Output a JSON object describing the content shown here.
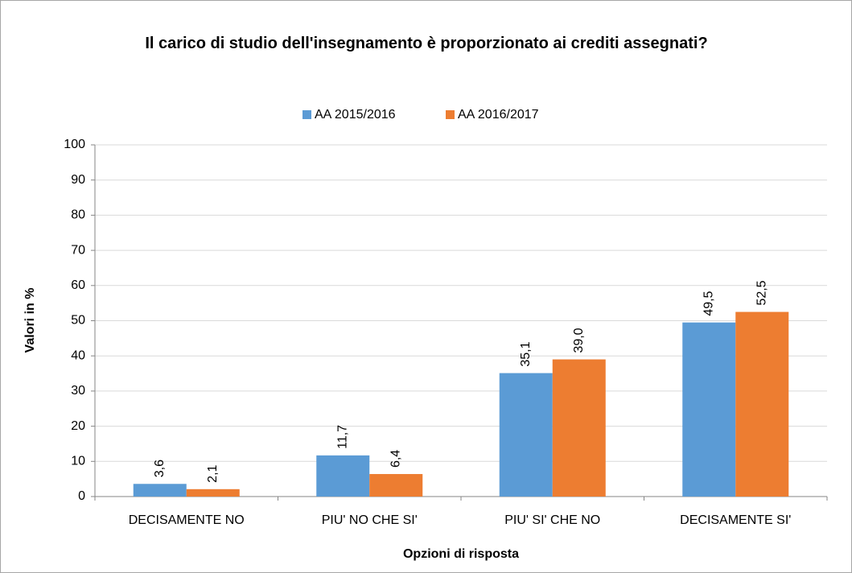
{
  "chart_data": {
    "type": "bar",
    "title": "Il carico di studio dell'insegnamento è proporzionato ai crediti assegnati?",
    "x_label": "Opzioni di risposta",
    "y_label": "Valori in %",
    "categories": [
      "DECISAMENTE NO",
      "PIU' NO CHE SI'",
      "PIU' SI' CHE NO",
      "DECISAMENTE SI'"
    ],
    "series": [
      {
        "name": "AA 2015/2016",
        "color": "#5b9bd5",
        "values": [
          3.6,
          11.7,
          35.1,
          49.5
        ],
        "value_labels": [
          "3,6",
          "11,7",
          "35,1",
          "49,5"
        ]
      },
      {
        "name": "AA 2016/2017",
        "color": "#ed7d31",
        "values": [
          2.1,
          6.4,
          39.0,
          52.5
        ],
        "value_labels": [
          "2,1",
          "6,4",
          "39,0",
          "52,5"
        ]
      }
    ],
    "ylim": [
      0,
      100
    ],
    "yticks": [
      0,
      10,
      20,
      30,
      40,
      50,
      60,
      70,
      80,
      90,
      100
    ],
    "grid": true,
    "legend": "top"
  }
}
